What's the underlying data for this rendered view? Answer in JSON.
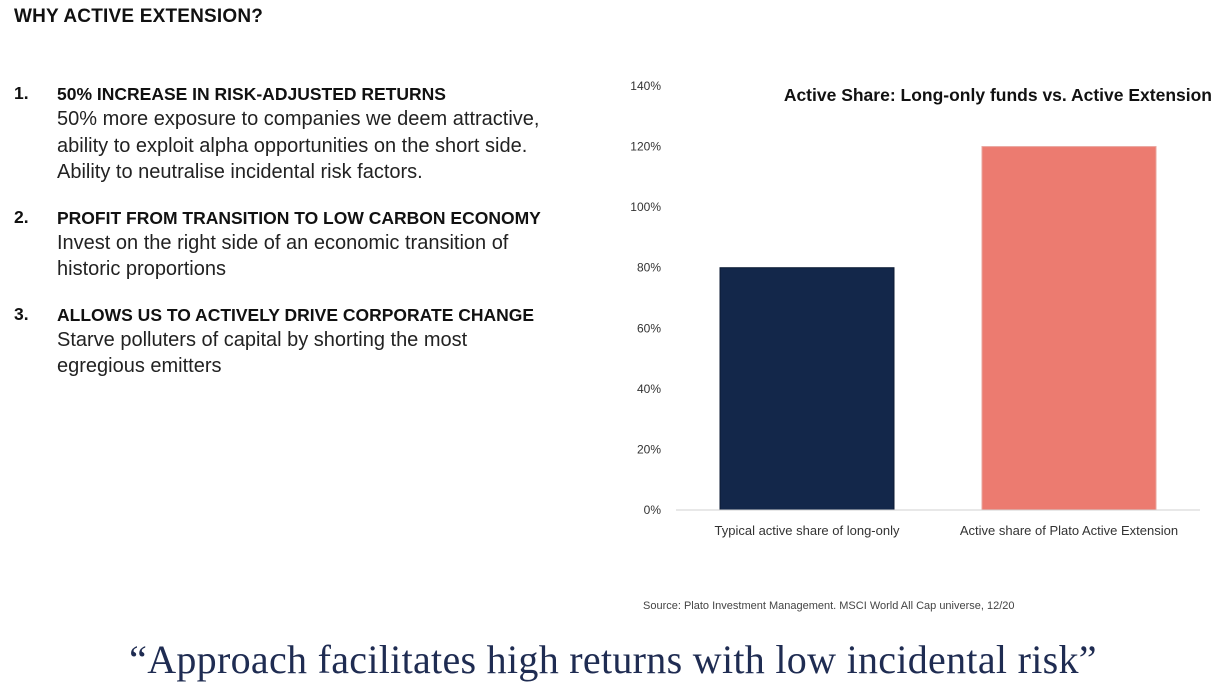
{
  "page": {
    "title": "WHY ACTIVE EXTENSION?",
    "source": "Source: Plato Investment Management. MSCI World All Cap universe, 12/20",
    "quote": "“Approach facilitates high returns with low incidental risk”"
  },
  "points": [
    {
      "number": "1.",
      "heading": "50% INCREASE IN RISK-ADJUSTED RETURNS",
      "lines": [
        "50% more exposure to companies we deem attractive,",
        "ability to exploit alpha opportunities on the short side.",
        "Ability to neutralise incidental risk factors."
      ]
    },
    {
      "number": "2.",
      "heading": "PROFIT FROM TRANSITION TO LOW CARBON ECONOMY",
      "lines": [
        "Invest on the right side of an economic transition of",
        "historic proportions"
      ]
    },
    {
      "number": "3.",
      "heading": "ALLOWS US TO ACTIVELY DRIVE CORPORATE CHANGE",
      "lines": [
        "Starve polluters of capital by shorting the most",
        "egregious emitters"
      ]
    }
  ],
  "chart_data": {
    "type": "bar",
    "title": "Active Share: Long-only funds vs. Active Extension",
    "categories": [
      "Typical active share of long-only",
      "Active share of Plato Active Extension"
    ],
    "values": [
      80,
      120
    ],
    "colors": [
      "#13274a",
      "#ec7b70"
    ],
    "ylim": [
      0,
      140
    ],
    "yticks": [
      0,
      20,
      40,
      60,
      80,
      100,
      120,
      140
    ],
    "ytick_labels": [
      "0%",
      "20%",
      "40%",
      "60%",
      "80%",
      "100%",
      "120%",
      "140%"
    ],
    "unit": "%",
    "grid": false,
    "legend": false
  }
}
